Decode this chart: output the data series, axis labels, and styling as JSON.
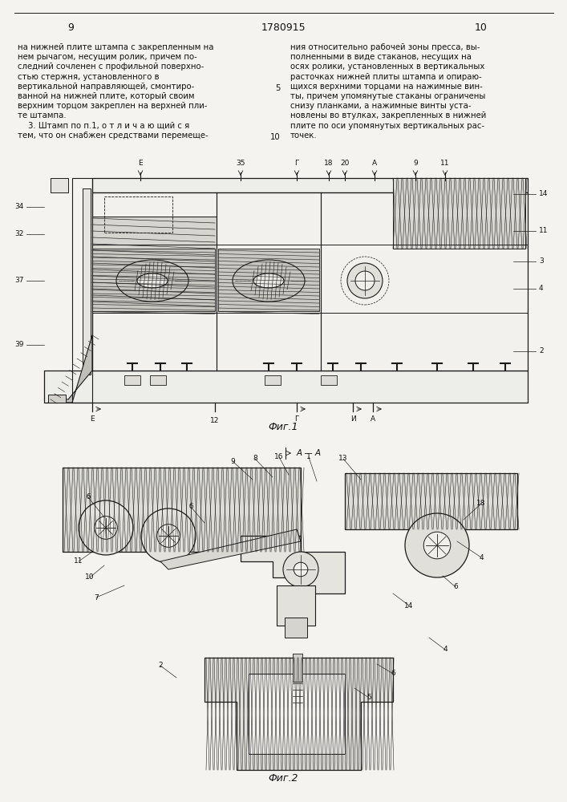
{
  "bg_color": "#f4f3ef",
  "line_color": "#1a1a1a",
  "text_color": "#111111",
  "page_left": "9",
  "page_center": "1780915",
  "page_right": "10",
  "fig1_label": "Фиг.1",
  "fig2_label": "Фиг.2",
  "col1_lines": [
    "на нижней плите штампа с закрепленным на",
    "нем рычагом, несущим ролик, причем по-",
    "следний сочленен с профильной поверхно-",
    "стью стержня, установленного в",
    "вертикальной направляющей, смонтиро-",
    "ванной на нижней плите, который своим",
    "верхним торцом закреплен на верхней пли-",
    "те штампа.",
    "    3. Штамп по п.1, о т л и ч а ю щий с я",
    "тем, что он снабжен средствами перемеще-"
  ],
  "col2_lines": [
    "ния относительно рабочей зоны пресса, вы-",
    "полненными в виде стаканов, несущих на",
    "осях ролики, установленных в вертикальных",
    "расточках нижней плиты штампа и опираю-",
    "щихся верхними торцами на нажимные вин-",
    "ты, причем упомянутые стаканы ограничены",
    "снизу планками, а нажимные винты уста-",
    "новлены во втулках, закрепленных в нижней",
    "плите по оси упомянутых вертикальных рас-",
    "точек."
  ]
}
